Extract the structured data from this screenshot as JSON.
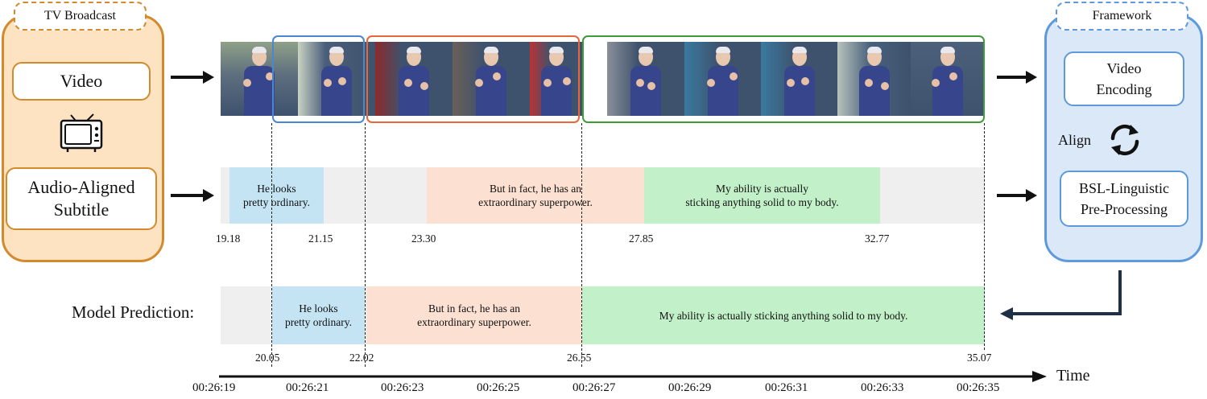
{
  "left_panel": {
    "title": "TV Broadcast",
    "video_label": "Video",
    "subtitle_label_line1": "Audio-Aligned",
    "subtitle_label_line2": "Subtitle",
    "tv_icon": "tv-icon"
  },
  "right_panel": {
    "title": "Framework",
    "encoding_line1": "Video",
    "encoding_line2": "Encoding",
    "align_label": "Align",
    "align_icon": "sync-icon",
    "preprocessing_line1": "BSL-Linguistic",
    "preprocessing_line2": "Pre-Processing"
  },
  "audio_aligned": {
    "segments": [
      {
        "line1": "He looks",
        "line2": "pretty ordinary.",
        "color": "#c4e4f4"
      },
      {
        "line1": "But in fact, he has an",
        "line2": "extraordinary superpower.",
        "color": "#fce0d2"
      },
      {
        "line1": "My ability is actually",
        "line2": "sticking anything solid to my body.",
        "color": "#c2f0c8"
      }
    ],
    "times": [
      "19.18",
      "21.15",
      "23.30",
      "27.85",
      "32.77"
    ]
  },
  "prediction": {
    "label": "Model Prediction:",
    "segments": [
      {
        "line1": "He looks",
        "line2": "pretty ordinary.",
        "color": "#c4e4f4"
      },
      {
        "line1": "But in fact, he has an",
        "line2": "extraordinary superpower.",
        "color": "#fce0d2"
      },
      {
        "line1": "My ability is actually sticking anything solid to my body.",
        "line2": "",
        "color": "#c2f0c8"
      }
    ],
    "times": [
      "20.05",
      "22.02",
      "26.55",
      "35.07"
    ]
  },
  "time_axis": {
    "label": "Time",
    "ticks": [
      "00:26:19",
      "00:26:21",
      "00:26:23",
      "00:26:25",
      "00:26:27",
      "00:26:29",
      "00:26:31",
      "00:26:33",
      "00:26:35"
    ]
  },
  "colors": {
    "orange_border": "#d28a2c",
    "orange_fill": "#fde3c2",
    "blue_border": "#5d99db",
    "blue_fill": "#dae8f8",
    "segment_blue": "#4a87d0",
    "segment_orange": "#e8663a",
    "segment_green": "#3f9a3a"
  }
}
